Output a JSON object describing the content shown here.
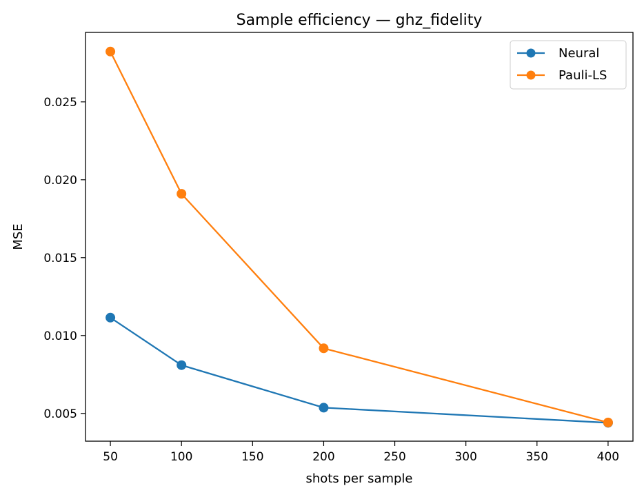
{
  "chart_data": {
    "type": "line",
    "title": "Sample efficiency — ghz_fidelity",
    "xlabel": "shots per sample",
    "ylabel": "MSE",
    "x": [
      50,
      100,
      200,
      400
    ],
    "xlim": [
      32.5,
      417.5
    ],
    "ylim": [
      0.00322,
      0.02946
    ],
    "xticks": [
      50,
      100,
      150,
      200,
      250,
      300,
      350,
      400
    ],
    "xtick_labels": [
      "50",
      "100",
      "150",
      "200",
      "250",
      "300",
      "350",
      "400"
    ],
    "yticks": [
      0.005,
      0.01,
      0.015,
      0.02,
      0.025
    ],
    "ytick_labels": [
      "0.005",
      "0.010",
      "0.015",
      "0.020",
      "0.025"
    ],
    "grid": false,
    "legend_position": "top-right",
    "series": [
      {
        "name": "Neural",
        "color": "#1f77b4",
        "marker": "circle",
        "values": [
          0.01115,
          0.0081,
          0.00537,
          0.0044
        ]
      },
      {
        "name": "Pauli-LS",
        "color": "#ff7f0e",
        "marker": "circle",
        "values": [
          0.02823,
          0.0191,
          0.00918,
          0.00442
        ]
      }
    ]
  }
}
